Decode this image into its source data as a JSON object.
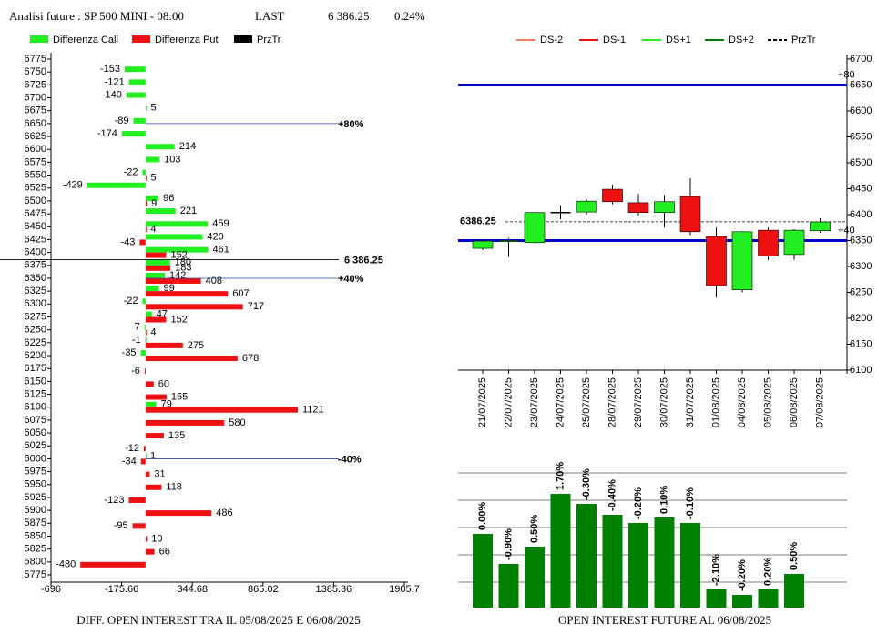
{
  "header": {
    "title": "Analisi future : SP 500 MINI - 08:00",
    "last_label": "LAST",
    "last": "6 386.25",
    "change": "0.24%"
  },
  "chart_data": [
    {
      "type": "hbar",
      "title": "DIFF. OPEN INTEREST TRA IL 05/08/2025 E 06/08/2025",
      "categories": [
        6775,
        6750,
        6725,
        6700,
        6675,
        6650,
        6625,
        6600,
        6575,
        6550,
        6525,
        6500,
        6475,
        6450,
        6425,
        6400,
        6375,
        6350,
        6325,
        6300,
        6275,
        6250,
        6225,
        6200,
        6175,
        6150,
        6125,
        6100,
        6075,
        6050,
        6025,
        6000,
        5975,
        5950,
        5925,
        5900,
        5875,
        5850,
        5825,
        5800,
        5775
      ],
      "ylim": [
        5775,
        6775
      ],
      "xlim": [
        -696,
        1905.7
      ],
      "xticks": [
        -696,
        -175.66,
        344.68,
        865.02,
        1385.36,
        1905.7
      ],
      "series": [
        {
          "name": "Differenza Call",
          "color": "#22ee22",
          "values": [
            null,
            -153,
            -121,
            -140,
            5,
            -89,
            -174,
            214,
            103,
            -22,
            -429,
            96,
            221,
            459,
            420,
            461,
            180,
            142,
            99,
            -22,
            47,
            -7,
            -1,
            -35,
            null,
            null,
            null,
            79,
            null,
            null,
            null,
            1,
            null,
            null,
            null,
            null,
            null,
            null,
            null,
            null,
            null
          ]
        },
        {
          "name": "Differenza Put",
          "color": "#ee1111",
          "values": [
            null,
            null,
            null,
            null,
            null,
            null,
            null,
            null,
            null,
            5,
            null,
            9,
            null,
            4,
            -43,
            152,
            183,
            408,
            607,
            717,
            152,
            4,
            275,
            678,
            -6,
            60,
            155,
            1121,
            580,
            135,
            -12,
            -34,
            31,
            118,
            -123,
            486,
            -95,
            10,
            66,
            -480,
            null
          ]
        }
      ],
      "price_line": {
        "name": "PrzTr",
        "color": "#000000",
        "value": 6386.25,
        "label": "6 386.25"
      },
      "annotations": [
        {
          "value": 6650,
          "label": "+80%"
        },
        {
          "value": 6350,
          "label": "+40%"
        },
        {
          "value": 6000,
          "label": "-40%"
        }
      ]
    },
    {
      "type": "candlestick",
      "x": [
        "21/07/2025",
        "22/07/2025",
        "23/07/2025",
        "24/07/2025",
        "25/07/2025",
        "28/07/2025",
        "29/07/2025",
        "30/07/2025",
        "31/07/2025",
        "01/08/2025",
        "04/08/2025",
        "05/08/2025",
        "06/08/2025",
        "07/08/2025"
      ],
      "open": [
        6335,
        6348,
        6346,
        6404,
        6405,
        6449,
        6423,
        6404,
        6435,
        6358,
        6255,
        6370,
        6323,
        6369
      ],
      "high": [
        6352,
        6355,
        6404,
        6418,
        6430,
        6458,
        6440,
        6438,
        6470,
        6375,
        6368,
        6375,
        6372,
        6393
      ],
      "low": [
        6332,
        6318,
        6345,
        6391,
        6400,
        6420,
        6398,
        6375,
        6360,
        6240,
        6250,
        6312,
        6313,
        6365
      ],
      "close": [
        6349,
        6350,
        6404,
        6404,
        6426,
        6425,
        6404,
        6425,
        6367,
        6263,
        6367,
        6320,
        6370,
        6386
      ],
      "up_color": "#22ee22",
      "down_color": "#ee1111",
      "ylim": [
        6100,
        6700
      ],
      "yticks": [
        6100,
        6150,
        6200,
        6250,
        6300,
        6350,
        6400,
        6450,
        6500,
        6550,
        6600,
        6650,
        6700
      ],
      "legend": [
        {
          "name": "DS-2",
          "color": "#f08060"
        },
        {
          "name": "DS-1",
          "color": "#ee1111"
        },
        {
          "name": "DS+1",
          "color": "#22ee22"
        },
        {
          "name": "DS+2",
          "color": "#008000"
        },
        {
          "name": "PrzTr",
          "color": "#000000",
          "dash": true
        }
      ],
      "hlines": [
        {
          "value": 6650,
          "label": "+80",
          "color": "#0000cc"
        },
        {
          "value": 6350,
          "label": "+40",
          "color": "#0000cc"
        }
      ],
      "price_line": {
        "value": 6386.25,
        "label": "6386.25"
      }
    },
    {
      "type": "bar",
      "title": "OPEN INTEREST FUTURE AL 06/08/2025",
      "values": [
        81,
        48,
        67,
        125,
        114,
        102,
        93,
        99,
        93,
        20,
        14,
        20,
        37
      ],
      "changes": [
        "0.00%",
        "-0.90%",
        "0.50%",
        "1.70%",
        "-0.30%",
        "-0.40%",
        "-0.20%",
        "0.10%",
        "-0.10%",
        "-2.10%",
        "-0.20%",
        "0.20%",
        "0.50%"
      ],
      "color": "#008000",
      "ylim": [
        0,
        160
      ],
      "yticks": [
        28,
        58,
        88,
        118,
        148
      ],
      "grid": true
    }
  ]
}
